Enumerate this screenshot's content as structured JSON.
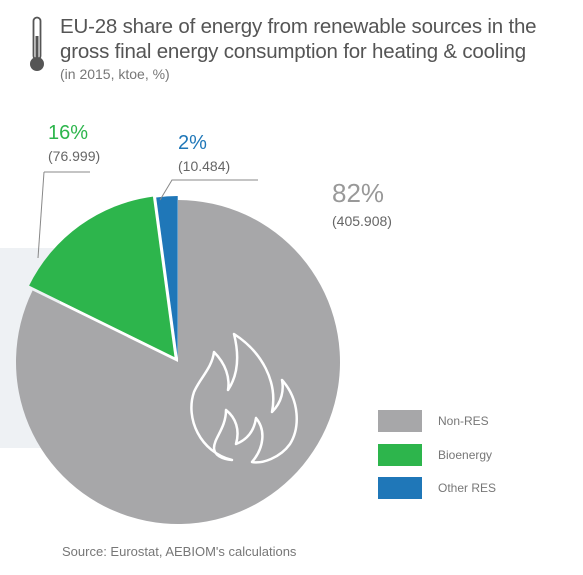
{
  "title": "EU-28 share of energy from renewable sources in the gross final energy consumption for heating & cooling",
  "subtitle": "(in 2015, ktoe, %)",
  "source": "Source: Eurostat, AEBIOM's calculations",
  "colors": {
    "non_res": "#a7a7a9",
    "bioenergy": "#2db54c",
    "other_res": "#1f77b8",
    "text": "#555555"
  },
  "icons": [
    "thermometer-icon",
    "flame-icon"
  ],
  "chart_data": {
    "type": "pie",
    "title": "EU-28 share of energy from renewable sources in the gross final energy consumption for heating & cooling",
    "subtitle": "(in 2015, ktoe, %)",
    "unit": "ktoe",
    "slices": [
      {
        "name": "Non-RES",
        "value": 405.908,
        "percent": "82%",
        "value_label": "(405.908)",
        "color": "#a7a7a9"
      },
      {
        "name": "Bioenergy",
        "value": 76.999,
        "percent": "16%",
        "value_label": "(76.999)",
        "color": "#2db54c"
      },
      {
        "name": "Other RES",
        "value": 10.484,
        "percent": "2%",
        "value_label": "(10.484)",
        "color": "#1f77b8"
      }
    ],
    "legend": {
      "position": "bottom-right",
      "entries": [
        "Non-RES",
        "Bioenergy",
        "Other RES"
      ]
    }
  }
}
